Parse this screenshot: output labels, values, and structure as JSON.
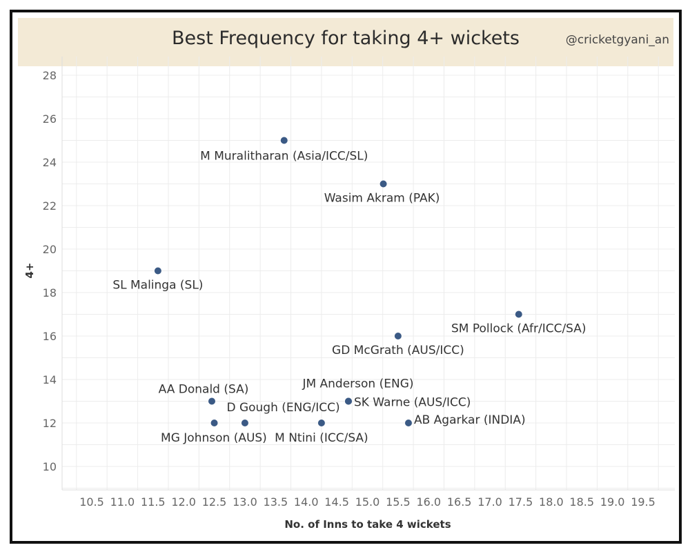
{
  "header": {
    "title": "Best Frequency for taking 4+ wickets",
    "credit": "@cricketgyani_an"
  },
  "chart_data": {
    "type": "scatter",
    "title": "Best Frequency for taking 4+ wickets",
    "xlabel": "No. of Inns to take 4 wickets",
    "ylabel": "4+",
    "xlim": [
      10.5,
      19.5
    ],
    "ylim": [
      10,
      28
    ],
    "x_ticks": [
      "10.5",
      "11.0",
      "11.5",
      "12.0",
      "12.5",
      "13.0",
      "13.5",
      "14.0",
      "14.5",
      "15.0",
      "15.5",
      "16.0",
      "16.5",
      "17.0",
      "17.5",
      "18.0",
      "18.5",
      "19.0",
      "19.5"
    ],
    "y_ticks": [
      "10",
      "12",
      "14",
      "16",
      "18",
      "20",
      "22",
      "24",
      "26",
      "28"
    ],
    "grid": true,
    "marker_color": "#3b5a85",
    "points": [
      {
        "label": "M Muralitharan (Asia/ICC/SL)",
        "x": 13.64,
        "y": 25
      },
      {
        "label": "Wasim Akram (PAK)",
        "x": 15.26,
        "y": 23
      },
      {
        "label": "SL Malinga (SL)",
        "x": 11.58,
        "y": 19
      },
      {
        "label": "SM Pollock (Afr/ICC/SA)",
        "x": 17.47,
        "y": 17
      },
      {
        "label": "GD McGrath (AUS/ICC)",
        "x": 15.5,
        "y": 16
      },
      {
        "label": "AA Donald (SA)",
        "x": 12.46,
        "y": 13
      },
      {
        "label": "SK Warne (AUS/ICC)",
        "x": 14.69,
        "y": 13
      },
      {
        "label": "JM Anderson (ENG)",
        "x": 14.69,
        "y": 13
      },
      {
        "label": "D Gough (ENG/ICC)",
        "x": 12.5,
        "y": 12
      },
      {
        "label": "MG Johnson (AUS)",
        "x": 13.0,
        "y": 12
      },
      {
        "label": "M Ntini (ICC/SA)",
        "x": 14.25,
        "y": 12
      },
      {
        "label": "AB Agarkar (INDIA)",
        "x": 15.67,
        "y": 12
      }
    ]
  }
}
